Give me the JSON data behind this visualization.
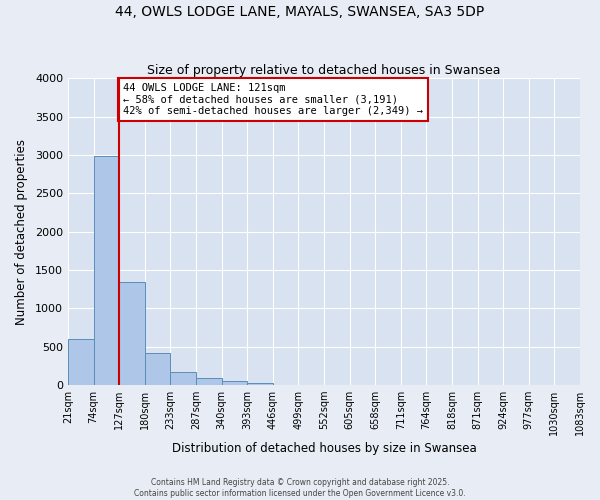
{
  "title1": "44, OWLS LODGE LANE, MAYALS, SWANSEA, SA3 5DP",
  "title2": "Size of property relative to detached houses in Swansea",
  "xlabel": "Distribution of detached houses by size in Swansea",
  "ylabel": "Number of detached properties",
  "tick_labels": [
    "21sqm",
    "74sqm",
    "127sqm",
    "180sqm",
    "233sqm",
    "287sqm",
    "340sqm",
    "393sqm",
    "446sqm",
    "499sqm",
    "552sqm",
    "605sqm",
    "658sqm",
    "711sqm",
    "764sqm",
    "818sqm",
    "871sqm",
    "924sqm",
    "977sqm",
    "1030sqm",
    "1083sqm"
  ],
  "bar_values": [
    600,
    2980,
    1340,
    420,
    175,
    85,
    45,
    20,
    5,
    0,
    0,
    0,
    0,
    0,
    0,
    0,
    0,
    0,
    0,
    0
  ],
  "bar_color": "#aec6e8",
  "bar_edge_color": "#5b8db8",
  "vline_pos": 1.5,
  "vline_color": "#cc0000",
  "annotation_text": "44 OWLS LODGE LANE: 121sqm\n← 58% of detached houses are smaller (3,191)\n42% of semi-detached houses are larger (2,349) →",
  "annotation_box_color": "#ffffff",
  "annotation_box_edge": "#cc0000",
  "ylim": [
    0,
    4000
  ],
  "yticks": [
    0,
    500,
    1000,
    1500,
    2000,
    2500,
    3000,
    3500,
    4000
  ],
  "footer1": "Contains HM Land Registry data © Crown copyright and database right 2025.",
  "footer2": "Contains public sector information licensed under the Open Government Licence v3.0.",
  "bg_color": "#e8edf5",
  "plot_bg_color": "#d8e2f0"
}
